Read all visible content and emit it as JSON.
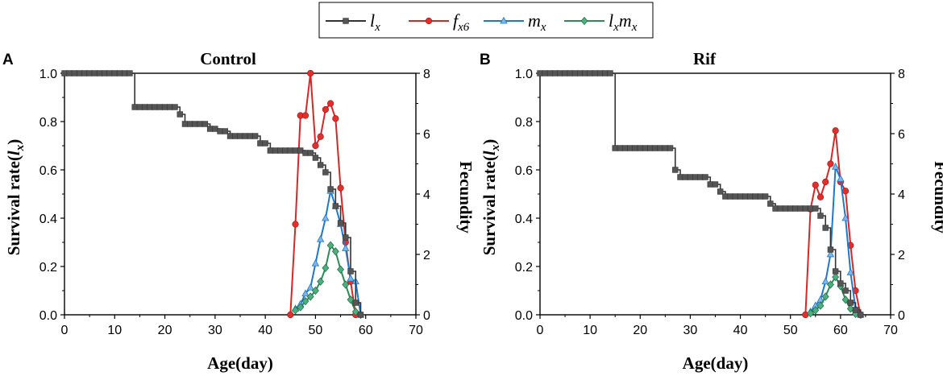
{
  "legend": {
    "items": [
      {
        "key": "lx",
        "main": "l",
        "sub": "x",
        "color": "#333333",
        "marker": "square"
      },
      {
        "key": "fx6",
        "main": "f",
        "sub": "x6",
        "color": "#d62728",
        "marker": "circle"
      },
      {
        "key": "mx",
        "main": "m",
        "sub": "x",
        "color": "#1f78c8",
        "marker": "triangle"
      },
      {
        "key": "lxmx",
        "main": "l",
        "sub": "x",
        "main2": "m",
        "sub2": "x",
        "color": "#2e8b57",
        "marker": "diamond"
      }
    ]
  },
  "chart_data": [
    {
      "type": "line",
      "panel_label": "A",
      "title": "Control",
      "xlabel": "Age(day)",
      "ylabel_left": "Survival rate(",
      "ylabel_left_var": "l",
      "ylabel_left_sub": "x",
      "ylabel_left_close": ")",
      "ylabel_right": "Fecundity",
      "xlim": [
        0,
        70
      ],
      "ylim_left": [
        0,
        1.0
      ],
      "ylim_right": [
        0,
        8
      ],
      "xticks": [
        "0",
        "10",
        "20",
        "30",
        "40",
        "50",
        "60",
        "70"
      ],
      "yticks_left": [
        "0.0",
        "0.2",
        "0.4",
        "0.6",
        "0.8",
        "1.0"
      ],
      "yticks_right": [
        "0",
        "2",
        "4",
        "6",
        "8"
      ],
      "series": [
        {
          "name": "lx",
          "axis": "left",
          "step": true,
          "points": [
            [
              0,
              1.0
            ],
            [
              13,
              1.0
            ],
            [
              14,
              0.86
            ],
            [
              22,
              0.86
            ],
            [
              23,
              0.83
            ],
            [
              24,
              0.79
            ],
            [
              28,
              0.79
            ],
            [
              29,
              0.77
            ],
            [
              31,
              0.76
            ],
            [
              33,
              0.74
            ],
            [
              38,
              0.74
            ],
            [
              39,
              0.71
            ],
            [
              41,
              0.68
            ],
            [
              47,
              0.68
            ],
            [
              48,
              0.67
            ],
            [
              50,
              0.65
            ],
            [
              51,
              0.62
            ],
            [
              52,
              0.59
            ],
            [
              53,
              0.52
            ],
            [
              54,
              0.45
            ],
            [
              55,
              0.38
            ],
            [
              56,
              0.32
            ],
            [
              57,
              0.18
            ],
            [
              58,
              0.05
            ],
            [
              59,
              0.0
            ]
          ]
        },
        {
          "name": "fx6",
          "axis": "right",
          "points": [
            [
              45,
              0
            ],
            [
              46,
              3.0
            ],
            [
              47,
              6.6
            ],
            [
              48,
              6.6
            ],
            [
              49,
              8.0
            ],
            [
              50,
              5.6
            ],
            [
              51,
              5.9
            ],
            [
              52,
              6.8
            ],
            [
              53,
              7.0
            ],
            [
              54,
              6.5
            ],
            [
              55,
              4.2
            ],
            [
              56,
              2.4
            ],
            [
              57,
              1.1
            ],
            [
              58,
              0
            ]
          ]
        },
        {
          "name": "mx",
          "axis": "right",
          "points": [
            [
              46,
              0.2
            ],
            [
              47,
              0.35
            ],
            [
              48,
              0.7
            ],
            [
              49,
              0.9
            ],
            [
              50,
              1.7
            ],
            [
              51,
              2.5
            ],
            [
              52,
              3.2
            ],
            [
              53,
              4.1
            ],
            [
              54,
              3.6
            ],
            [
              55,
              3.0
            ],
            [
              56,
              2.2
            ],
            [
              57,
              1.2
            ],
            [
              58,
              1.1
            ],
            [
              59,
              0
            ]
          ]
        },
        {
          "name": "lxmx",
          "axis": "right",
          "points": [
            [
              46,
              0.15
            ],
            [
              47,
              0.25
            ],
            [
              48,
              0.45
            ],
            [
              49,
              0.6
            ],
            [
              50,
              0.8
            ],
            [
              51,
              1.1
            ],
            [
              52,
              1.55
            ],
            [
              53,
              2.3
            ],
            [
              54,
              2.1
            ],
            [
              55,
              1.5
            ],
            [
              56,
              1.0
            ],
            [
              57,
              0.5
            ],
            [
              58,
              0.1
            ],
            [
              59,
              0
            ]
          ]
        }
      ]
    },
    {
      "type": "line",
      "panel_label": "B",
      "title": "Rif",
      "xlabel": "Age(day)",
      "ylabel_left": "Survival rate(",
      "ylabel_left_var": "l",
      "ylabel_left_sub": "x",
      "ylabel_left_close": ")",
      "ylabel_right": "Fecundity",
      "xlim": [
        0,
        70
      ],
      "ylim_left": [
        0,
        1.0
      ],
      "ylim_right": [
        0,
        8
      ],
      "xticks": [
        "0",
        "10",
        "20",
        "30",
        "40",
        "50",
        "60",
        "70"
      ],
      "yticks_left": [
        "0.0",
        "0.2",
        "0.4",
        "0.6",
        "0.8",
        "1.0"
      ],
      "yticks_right": [
        "0",
        "2",
        "4",
        "6",
        "8"
      ],
      "series": [
        {
          "name": "lx",
          "axis": "left",
          "step": true,
          "points": [
            [
              0,
              1.0
            ],
            [
              14,
              1.0
            ],
            [
              15,
              0.69
            ],
            [
              26,
              0.69
            ],
            [
              27,
              0.6
            ],
            [
              28,
              0.57
            ],
            [
              33,
              0.57
            ],
            [
              34,
              0.54
            ],
            [
              36,
              0.51
            ],
            [
              37,
              0.49
            ],
            [
              45,
              0.49
            ],
            [
              46,
              0.46
            ],
            [
              47,
              0.44
            ],
            [
              55,
              0.44
            ],
            [
              56,
              0.41
            ],
            [
              57,
              0.36
            ],
            [
              58,
              0.27
            ],
            [
              59,
              0.18
            ],
            [
              60,
              0.13
            ],
            [
              61,
              0.1
            ],
            [
              62,
              0.05
            ],
            [
              63,
              0.02
            ],
            [
              64,
              0.0
            ]
          ]
        },
        {
          "name": "fx6",
          "axis": "right",
          "points": [
            [
              53,
              0
            ],
            [
              54,
              3.5
            ],
            [
              55,
              4.3
            ],
            [
              56,
              3.9
            ],
            [
              57,
              4.4
            ],
            [
              58,
              5.0
            ],
            [
              59,
              6.1
            ],
            [
              60,
              4.4
            ],
            [
              61,
              4.1
            ],
            [
              62,
              2.3
            ],
            [
              63,
              0.8
            ],
            [
              64,
              0
            ]
          ]
        },
        {
          "name": "mx",
          "axis": "right",
          "points": [
            [
              54,
              0.1
            ],
            [
              55,
              0.3
            ],
            [
              56,
              0.5
            ],
            [
              57,
              1.1
            ],
            [
              58,
              2.0
            ],
            [
              59,
              4.9
            ],
            [
              60,
              4.5
            ],
            [
              61,
              3.2
            ],
            [
              62,
              1.4
            ],
            [
              63,
              0.2
            ],
            [
              64,
              0
            ]
          ]
        },
        {
          "name": "lxmx",
          "axis": "right",
          "points": [
            [
              54,
              0.05
            ],
            [
              55,
              0.15
            ],
            [
              56,
              0.3
            ],
            [
              57,
              0.6
            ],
            [
              58,
              1.0
            ],
            [
              59,
              1.25
            ],
            [
              60,
              0.95
            ],
            [
              61,
              0.5
            ],
            [
              62,
              0.2
            ],
            [
              63,
              0.03
            ],
            [
              64,
              0
            ]
          ]
        }
      ]
    }
  ]
}
